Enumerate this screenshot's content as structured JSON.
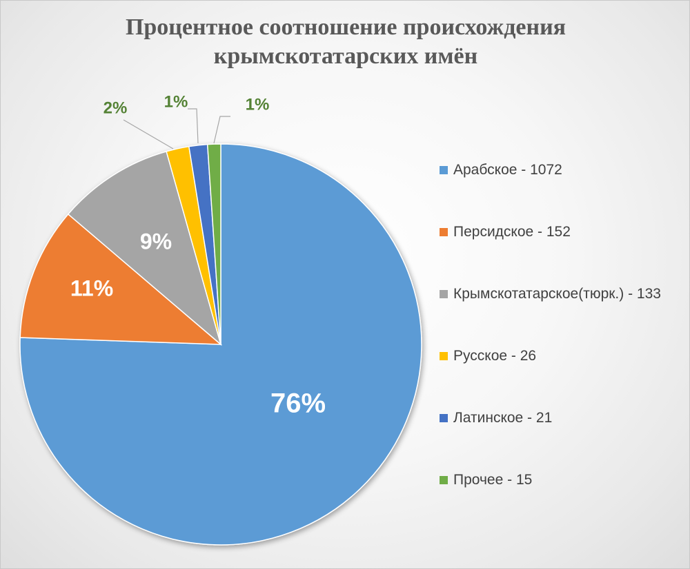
{
  "chart_data": {
    "type": "pie",
    "title_lines": [
      "Процентное соотношение происхождения",
      "крымскотатарских имён"
    ],
    "slices": [
      {
        "legend": "Арабское - 1072",
        "value": 1072,
        "percent_label": "76%",
        "color": "#5B9BD5",
        "label_color": "#ffffff"
      },
      {
        "legend": "Персидское - 152",
        "value": 152,
        "percent_label": "11%",
        "color": "#ED7D31",
        "label_color": "#ffffff"
      },
      {
        "legend": "Крымскотатарское(тюрк.) - 133",
        "value": 133,
        "percent_label": "9%",
        "color": "#A5A5A5",
        "label_color": "#ffffff"
      },
      {
        "legend": "Русское - 26",
        "value": 26,
        "percent_label": "2%",
        "color": "#FFC000",
        "label_color": "#548235"
      },
      {
        "legend": "Латинское - 21",
        "value": 21,
        "percent_label": "1%",
        "color": "#4472C4",
        "label_color": "#548235"
      },
      {
        "legend": "Прочее - 15",
        "value": 15,
        "percent_label": "1%",
        "color": "#70AD47",
        "label_color": "#548235"
      }
    ],
    "legend_position": "right",
    "start": "12 o'clock",
    "direction": "clockwise"
  }
}
